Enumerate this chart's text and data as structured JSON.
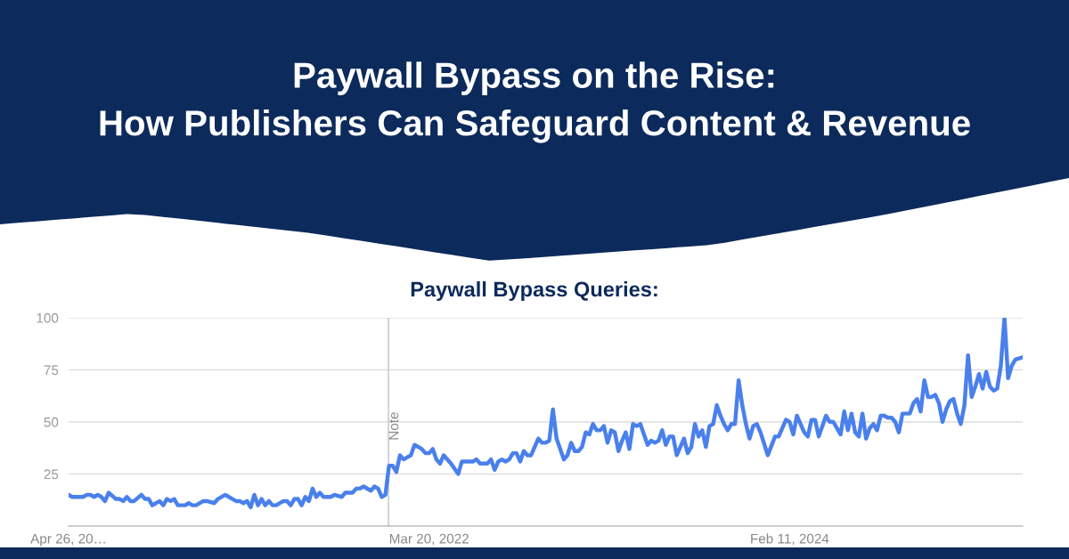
{
  "chart_data": {
    "type": "line",
    "title": "Paywall Bypass on the Rise:\nHow Publishers Can Safeguard Content & Revenue",
    "subtitle": "Paywall Bypass Queries:",
    "x": [
      "2020-04-26",
      "2020-05-03",
      "2020-05-24",
      "2020-05-31",
      "2020-06-07",
      "2020-06-14",
      "2020-06-21",
      "2020-06-28",
      "2020-07-05",
      "2020-07-12",
      "2020-07-26",
      "2020-08-02",
      "2020-08-09",
      "2020-08-16",
      "2020-08-23",
      "2020-08-30",
      "2020-09-13",
      "2020-09-20",
      "2020-09-27",
      "2020-10-04",
      "2020-10-18",
      "2020-10-25",
      "2020-11-01",
      "2020-11-08",
      "2020-11-15",
      "2020-11-22",
      "2020-12-06",
      "2020-12-13",
      "2020-12-20",
      "2020-12-27",
      "2021-01-10",
      "2021-01-17",
      "2021-01-31",
      "2021-02-07",
      "2021-02-21",
      "2021-02-28",
      "2021-03-07",
      "2021-03-14",
      "2021-03-21",
      "2021-03-28",
      "2021-04-04",
      "2021-04-11",
      "2021-04-18",
      "2021-04-25",
      "2021-05-02",
      "2021-05-09",
      "2021-05-16",
      "2021-05-23",
      "2021-05-30",
      "2021-06-13",
      "2021-06-20",
      "2021-06-27",
      "2021-07-04",
      "2021-07-11",
      "2021-07-18",
      "2021-07-25",
      "2021-08-01",
      "2021-08-08",
      "2021-08-15",
      "2021-08-22",
      "2021-08-29",
      "2021-09-12",
      "2021-09-19",
      "2021-10-03",
      "2021-10-10",
      "2021-10-24",
      "2021-10-31",
      "2021-11-07",
      "2021-11-14",
      "2021-11-28",
      "2021-12-05",
      "2021-12-12",
      "2021-12-19",
      "2021-12-26",
      "2022-01-02",
      "2022-01-09",
      "2022-01-16",
      "2022-01-23",
      "2022-01-30",
      "2022-02-13",
      "2022-02-20",
      "2022-03-06",
      "2022-03-13",
      "2022-03-20",
      "2022-03-27",
      "2022-04-03",
      "2022-04-10",
      "2022-04-17",
      "2022-05-01",
      "2022-05-15",
      "2022-05-22",
      "2022-06-12",
      "2022-06-19",
      "2022-06-26",
      "2022-07-10",
      "2022-07-17",
      "2022-07-24",
      "2022-07-31",
      "2022-08-07",
      "2022-08-14",
      "2022-08-21",
      "2022-08-28",
      "2022-09-04",
      "2022-09-11",
      "2022-09-18",
      "2022-09-25",
      "2022-10-02",
      "2022-10-16",
      "2022-10-23",
      "2022-10-30",
      "2022-11-06",
      "2022-11-13",
      "2022-11-20",
      "2022-12-04",
      "2022-12-11",
      "2022-12-18",
      "2022-12-25",
      "2023-01-01",
      "2023-01-08",
      "2023-01-15",
      "2023-01-22",
      "2023-01-29",
      "2023-02-05",
      "2023-02-12",
      "2023-02-19",
      "2023-02-26",
      "2023-03-05",
      "2023-03-12",
      "2023-03-19",
      "2023-03-26",
      "2023-04-02",
      "2023-04-09",
      "2023-04-16",
      "2023-04-23",
      "2023-04-30",
      "2023-05-14",
      "2023-05-21",
      "2023-05-28",
      "2023-06-04",
      "2023-06-11",
      "2023-06-18",
      "2023-06-25",
      "2023-07-02",
      "2023-07-09",
      "2023-07-16",
      "2023-07-23",
      "2023-07-30",
      "2023-08-06",
      "2023-08-13",
      "2023-08-20",
      "2023-08-27",
      "2023-09-03",
      "2023-09-10",
      "2023-09-17",
      "2023-09-24",
      "2023-10-01",
      "2023-10-08",
      "2023-10-15",
      "2023-10-22",
      "2023-10-29",
      "2023-11-05",
      "2023-11-12",
      "2023-11-19",
      "2023-11-26",
      "2023-12-03",
      "2023-12-10",
      "2023-12-17",
      "2023-12-31",
      "2024-01-14",
      "2024-01-21",
      "2024-02-04",
      "2024-02-11",
      "2024-02-18",
      "2024-02-25",
      "2024-03-03",
      "2024-03-10",
      "2024-03-17",
      "2024-03-24",
      "2024-03-31",
      "2024-04-07",
      "2024-04-21",
      "2024-04-28",
      "2024-05-05",
      "2024-05-19",
      "2024-05-26",
      "2024-06-02",
      "2024-06-09",
      "2024-06-16",
      "2024-06-23",
      "2024-06-30",
      "2024-07-07",
      "2024-07-14",
      "2024-07-21",
      "2024-07-28",
      "2024-08-04",
      "2024-08-11",
      "2024-08-18",
      "2024-08-25",
      "2024-09-01",
      "2024-09-08",
      "2024-09-15",
      "2024-09-29",
      "2024-10-06",
      "2024-10-13",
      "2024-10-20",
      "2024-10-27",
      "2024-11-03",
      "2024-11-10",
      "2024-11-17",
      "2024-11-24",
      "2024-12-01",
      "2024-12-08",
      "2024-12-15",
      "2024-12-22",
      "2024-12-29",
      "2025-01-05",
      "2025-01-12",
      "2025-01-19",
      "2025-01-26",
      "2025-02-02",
      "2025-02-09",
      "2025-02-16",
      "2025-02-23",
      "2025-03-02",
      "2025-03-09",
      "2025-03-16",
      "2025-03-23",
      "2025-03-30",
      "2025-04-06",
      "2025-04-13",
      "2025-04-20",
      "2025-05-04"
    ],
    "series": [
      {
        "color": "#4a80ec",
        "values": [
          15,
          14,
          14,
          15,
          15,
          14,
          15,
          14,
          12,
          16,
          13,
          13,
          12,
          14,
          12,
          12,
          15,
          13,
          13,
          10,
          12,
          10,
          13,
          12,
          13,
          10,
          10,
          11,
          10,
          10,
          12,
          12,
          11,
          13,
          15,
          14,
          13,
          12,
          12,
          11,
          12,
          9,
          15,
          10,
          13,
          10,
          12,
          10,
          10,
          12,
          12,
          10,
          13,
          13,
          10,
          14,
          12,
          18,
          14,
          16,
          14,
          14,
          15,
          14,
          16,
          16,
          18,
          18,
          19,
          17,
          19,
          18,
          14,
          15,
          29,
          29,
          26,
          34,
          32,
          34,
          39,
          37,
          35,
          35,
          37,
          32,
          30,
          34,
          30,
          25,
          31,
          31,
          32,
          30,
          30,
          32,
          27,
          31,
          32,
          31,
          32,
          35,
          35,
          31,
          36,
          34,
          34,
          42,
          40,
          40,
          41,
          56,
          42,
          32,
          34,
          40,
          36,
          36,
          38,
          45,
          44,
          49,
          46,
          46,
          48,
          40,
          46,
          45,
          36,
          41,
          45,
          37,
          49,
          48,
          49,
          39,
          41,
          40,
          41,
          46,
          39,
          43,
          43,
          34,
          38,
          42,
          35,
          38,
          49,
          43,
          46,
          38,
          48,
          49,
          58,
          53,
          49,
          46,
          49,
          49,
          70,
          58,
          49,
          42,
          48,
          49,
          45,
          34,
          43,
          43,
          51,
          50,
          44,
          53,
          49,
          45,
          43,
          51,
          51,
          43,
          53,
          50,
          50,
          44,
          55,
          46,
          54,
          45,
          43,
          54,
          42,
          47,
          49,
          46,
          53,
          53,
          52,
          52,
          50,
          45,
          54,
          54,
          59,
          61,
          55,
          70,
          62,
          62,
          63,
          59,
          50,
          56,
          60,
          61,
          54,
          49,
          58,
          82,
          62,
          67,
          73,
          66,
          74,
          67,
          65,
          66,
          77,
          100,
          71,
          77,
          80,
          81
        ]
      }
    ],
    "xlim": [
      "2020-04-26",
      "2025-05-04"
    ],
    "xticks": [
      {
        "value": "2020-04-26",
        "label": "Apr 26, 20…"
      },
      {
        "value": "2022-03-20",
        "label": "Mar 20, 2022"
      },
      {
        "value": "2024-02-11",
        "label": "Feb 11, 2024"
      }
    ],
    "ylim": [
      0,
      100
    ],
    "yticks": [
      25,
      50,
      75,
      100
    ],
    "grid": "y",
    "ref_lines": [
      {
        "axis": "x",
        "value": "2022-01-01",
        "label": "Note",
        "color": "#cccccc"
      }
    ]
  }
}
